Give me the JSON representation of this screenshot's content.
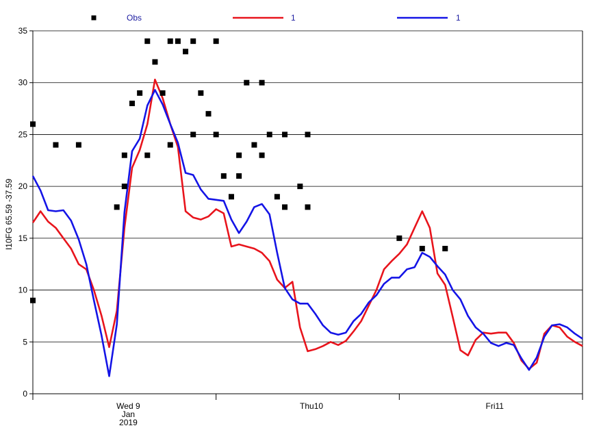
{
  "chart_data": {
    "type": "line",
    "ylabel": "I10FG 65.59 -37.59",
    "ylim": [
      0,
      35
    ],
    "y_ticks": [
      0,
      5,
      10,
      15,
      20,
      25,
      30,
      35
    ],
    "xlim": [
      0,
      72
    ],
    "grid": true,
    "legend_position": "top",
    "x_tick_labels": [
      {
        "x": 12.5,
        "lines": [
          "Wed 9",
          "Jan",
          "2019"
        ]
      },
      {
        "x": 36.5,
        "lines": [
          "Thu10"
        ]
      },
      {
        "x": 60.5,
        "lines": [
          "Fri11"
        ]
      }
    ],
    "x_major_ticks": [
      0,
      24,
      48,
      72
    ],
    "series": [
      {
        "name": "Obs",
        "kind": "markers",
        "color": "#000000",
        "points": [
          [
            0,
            9
          ],
          [
            0,
            26
          ],
          [
            3,
            24
          ],
          [
            6,
            24
          ],
          [
            11,
            18
          ],
          [
            12,
            23
          ],
          [
            12,
            20
          ],
          [
            13,
            28
          ],
          [
            14,
            29
          ],
          [
            15,
            34
          ],
          [
            15,
            23
          ],
          [
            16,
            32
          ],
          [
            17,
            29
          ],
          [
            18,
            24
          ],
          [
            18,
            34
          ],
          [
            19,
            34
          ],
          [
            20,
            33
          ],
          [
            21,
            34
          ],
          [
            21,
            25
          ],
          [
            22,
            29
          ],
          [
            23,
            27
          ],
          [
            24,
            34
          ],
          [
            24,
            25
          ],
          [
            25,
            21
          ],
          [
            26,
            19
          ],
          [
            27,
            23
          ],
          [
            27,
            21
          ],
          [
            28,
            30
          ],
          [
            29,
            24
          ],
          [
            30,
            30
          ],
          [
            30,
            23
          ],
          [
            31,
            25
          ],
          [
            32,
            19
          ],
          [
            33,
            25
          ],
          [
            33,
            18
          ],
          [
            35,
            20
          ],
          [
            36,
            25
          ],
          [
            36,
            18
          ],
          [
            48,
            15
          ],
          [
            51,
            14
          ],
          [
            54,
            14
          ]
        ]
      },
      {
        "name": "1",
        "kind": "line",
        "color": "#e8141c",
        "points": [
          [
            0,
            16.5
          ],
          [
            1,
            17.6
          ],
          [
            2,
            16.6
          ],
          [
            3,
            16
          ],
          [
            4,
            15
          ],
          [
            5,
            14
          ],
          [
            6,
            12.5
          ],
          [
            7,
            12
          ],
          [
            8,
            10
          ],
          [
            9,
            7.5
          ],
          [
            10,
            4.5
          ],
          [
            11,
            8
          ],
          [
            12,
            16
          ],
          [
            13,
            21.8
          ],
          [
            14,
            23.5
          ],
          [
            15,
            26
          ],
          [
            16,
            30.3
          ],
          [
            17,
            28.5
          ],
          [
            18,
            26
          ],
          [
            19,
            23.8
          ],
          [
            20,
            17.6
          ],
          [
            21,
            17
          ],
          [
            22,
            16.8
          ],
          [
            23,
            17.1
          ],
          [
            24,
            17.8
          ],
          [
            25,
            17.4
          ],
          [
            26,
            14.2
          ],
          [
            27,
            14.4
          ],
          [
            28,
            14.2
          ],
          [
            29,
            14
          ],
          [
            30,
            13.6
          ],
          [
            31,
            12.8
          ],
          [
            32,
            11
          ],
          [
            33,
            10.2
          ],
          [
            34,
            10.8
          ],
          [
            35,
            6.4
          ],
          [
            36,
            4.1
          ],
          [
            37,
            4.3
          ],
          [
            38,
            4.6
          ],
          [
            39,
            5
          ],
          [
            40,
            4.7
          ],
          [
            41,
            5.1
          ],
          [
            42,
            6
          ],
          [
            43,
            7
          ],
          [
            44,
            8.5
          ],
          [
            45,
            10
          ],
          [
            46,
            12
          ],
          [
            47,
            12.8
          ],
          [
            48,
            13.5
          ],
          [
            49,
            14.4
          ],
          [
            50,
            16
          ],
          [
            51,
            17.6
          ],
          [
            52,
            16
          ],
          [
            53,
            11.6
          ],
          [
            54,
            10.5
          ],
          [
            55,
            7.4
          ],
          [
            56,
            4.2
          ],
          [
            57,
            3.7
          ],
          [
            58,
            5.2
          ],
          [
            59,
            5.9
          ],
          [
            60,
            5.8
          ],
          [
            61,
            5.9
          ],
          [
            62,
            5.9
          ],
          [
            63,
            4.9
          ],
          [
            64,
            3.2
          ],
          [
            65,
            2.4
          ],
          [
            66,
            3
          ],
          [
            67,
            5.8
          ],
          [
            68,
            6.6
          ],
          [
            69,
            6.4
          ],
          [
            70,
            5.5
          ],
          [
            71,
            5
          ],
          [
            72,
            4.6
          ]
        ]
      },
      {
        "name": "1",
        "kind": "line",
        "color": "#1414e6",
        "points": [
          [
            0,
            21
          ],
          [
            1,
            19.6
          ],
          [
            2,
            17.7
          ],
          [
            3,
            17.6
          ],
          [
            4,
            17.7
          ],
          [
            5,
            16.7
          ],
          [
            6,
            14.9
          ],
          [
            7,
            12.5
          ],
          [
            8,
            9
          ],
          [
            9,
            5.6
          ],
          [
            10,
            1.7
          ],
          [
            11,
            6.7
          ],
          [
            12,
            17.5
          ],
          [
            13,
            23.4
          ],
          [
            14,
            24.6
          ],
          [
            15,
            27.8
          ],
          [
            16,
            29.3
          ],
          [
            17,
            27.9
          ],
          [
            18,
            26
          ],
          [
            19,
            24.2
          ],
          [
            20,
            21.3
          ],
          [
            21,
            21.1
          ],
          [
            22,
            19.7
          ],
          [
            23,
            18.8
          ],
          [
            24,
            18.7
          ],
          [
            25,
            18.6
          ],
          [
            26,
            16.8
          ],
          [
            27,
            15.5
          ],
          [
            28,
            16.6
          ],
          [
            29,
            18
          ],
          [
            30,
            18.3
          ],
          [
            31,
            17.3
          ],
          [
            32,
            13.6
          ],
          [
            33,
            10.2
          ],
          [
            34,
            9.1
          ],
          [
            35,
            8.7
          ],
          [
            36,
            8.7
          ],
          [
            37,
            7.7
          ],
          [
            38,
            6.6
          ],
          [
            39,
            5.9
          ],
          [
            40,
            5.7
          ],
          [
            41,
            5.9
          ],
          [
            42,
            7
          ],
          [
            43,
            7.7
          ],
          [
            44,
            8.8
          ],
          [
            45,
            9.5
          ],
          [
            46,
            10.6
          ],
          [
            47,
            11.2
          ],
          [
            48,
            11.2
          ],
          [
            49,
            12
          ],
          [
            50,
            12.2
          ],
          [
            51,
            13.6
          ],
          [
            52,
            13.2
          ],
          [
            53,
            12.3
          ],
          [
            54,
            11.5
          ],
          [
            55,
            10
          ],
          [
            56,
            9.1
          ],
          [
            57,
            7.5
          ],
          [
            58,
            6.4
          ],
          [
            59,
            5.8
          ],
          [
            60,
            4.9
          ],
          [
            61,
            4.6
          ],
          [
            62,
            4.9
          ],
          [
            63,
            4.7
          ],
          [
            64,
            3.4
          ],
          [
            65,
            2.3
          ],
          [
            66,
            3.5
          ],
          [
            67,
            5.5
          ],
          [
            68,
            6.6
          ],
          [
            69,
            6.7
          ],
          [
            70,
            6.4
          ],
          [
            71,
            5.8
          ],
          [
            72,
            5.3
          ]
        ]
      }
    ]
  }
}
